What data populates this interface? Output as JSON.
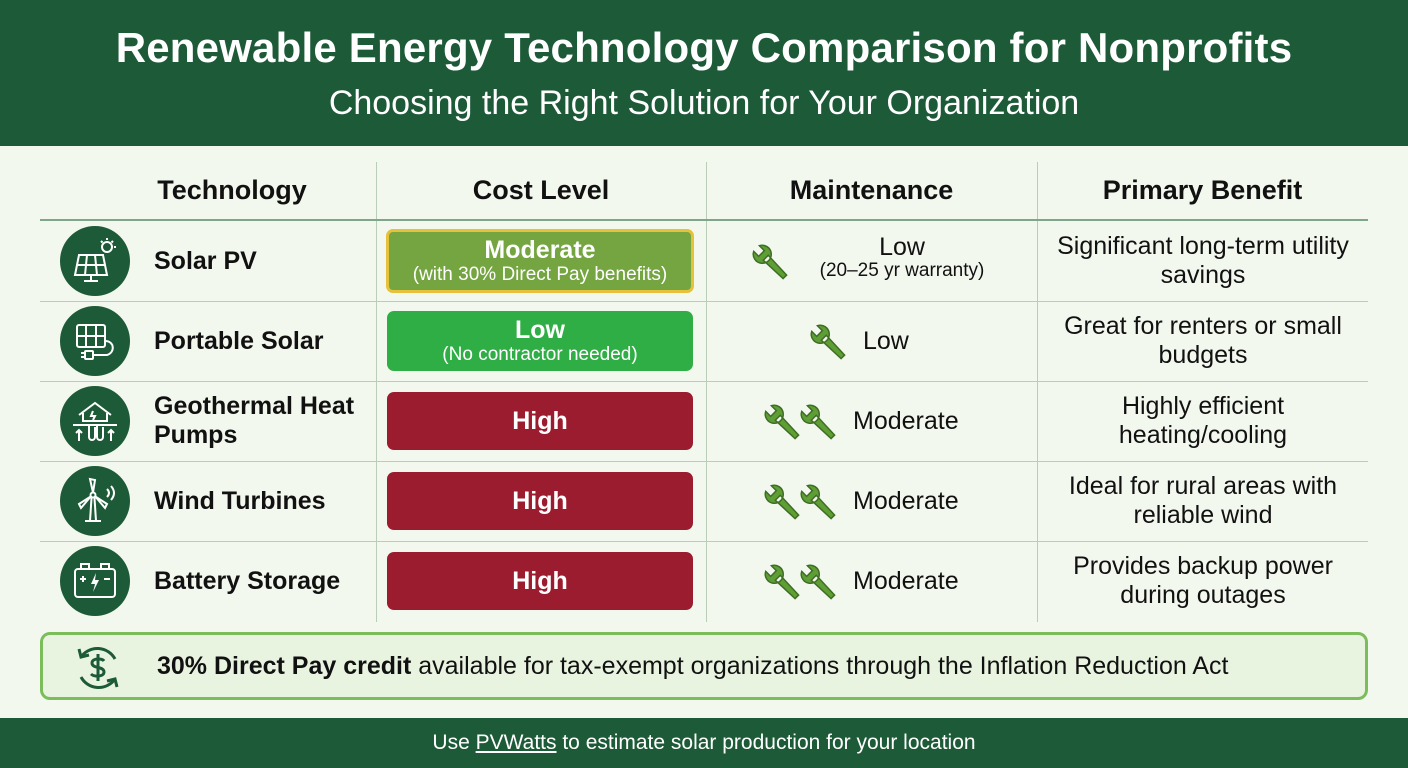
{
  "header": {
    "title": "Renewable Energy Technology Comparison for Nonprofits",
    "subtitle": "Choosing the Right Solution for Your Organization"
  },
  "columns": [
    "Technology",
    "Cost Level",
    "Maintenance",
    "Primary Benefit"
  ],
  "rows": [
    {
      "icon": "solar-panel-icon",
      "technology": "Solar PV",
      "cost": {
        "level": "Moderate",
        "note": "(with 30% Direct Pay benefits)",
        "color": "#74a541"
      },
      "maintenance": {
        "level": "Low",
        "note": "(20–25 yr warranty)",
        "wrench_count": 1
      },
      "benefit": "Significant long-term utility savings"
    },
    {
      "icon": "portable-solar-icon",
      "technology": "Portable Solar",
      "cost": {
        "level": "Low",
        "note": "(No contractor needed)",
        "color": "#2fae45"
      },
      "maintenance": {
        "level": "Low",
        "note": "",
        "wrench_count": 1
      },
      "benefit": "Great for renters or small budgets"
    },
    {
      "icon": "geothermal-house-icon",
      "technology": "Geothermal Heat Pumps",
      "cost": {
        "level": "High",
        "note": "",
        "color": "#9b1c2e"
      },
      "maintenance": {
        "level": "Moderate",
        "note": "",
        "wrench_count": 2
      },
      "benefit": "Highly efficient heating/cooling"
    },
    {
      "icon": "wind-turbine-icon",
      "technology": "Wind Turbines",
      "cost": {
        "level": "High",
        "note": "",
        "color": "#9b1c2e"
      },
      "maintenance": {
        "level": "Moderate",
        "note": "",
        "wrench_count": 2
      },
      "benefit": "Ideal for rural areas with reliable wind"
    },
    {
      "icon": "battery-icon",
      "technology": "Battery Storage",
      "cost": {
        "level": "High",
        "note": "",
        "color": "#9b1c2e"
      },
      "maintenance": {
        "level": "Moderate",
        "note": "",
        "wrench_count": 2
      },
      "benefit": "Provides backup power during outages"
    }
  ],
  "callout": {
    "icon": "dollar-cycle-icon",
    "bold": "30% Direct Pay credit",
    "text": " available for tax-exempt organizations through the Inflation Reduction Act"
  },
  "footer": {
    "prefix": "Use ",
    "link": "PVWatts",
    "suffix": " to estimate solar production for your location"
  },
  "colors": {
    "brand_green": "#1d5a38",
    "cost_moderate": "#74a541",
    "cost_low": "#2fae45",
    "cost_high": "#9b1c2e",
    "highlight_border": "#e6c13a",
    "wrench": "#5f9e35"
  }
}
